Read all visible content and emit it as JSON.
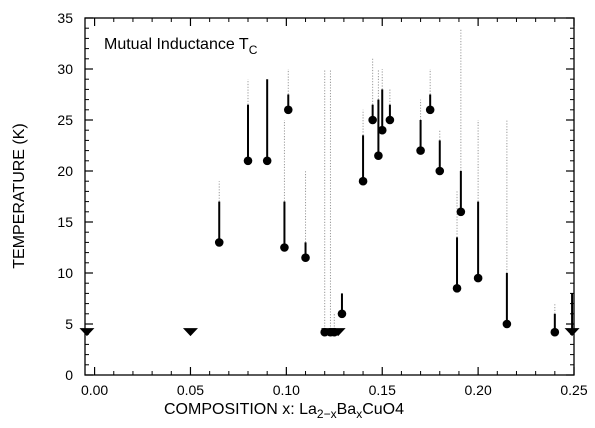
{
  "chart_data": {
    "type": "scatter",
    "title": "",
    "annotation": {
      "text": "Mutual Inductance T",
      "subscript": "C"
    },
    "xlabel": {
      "prefix": "COMPOSITION x:  ",
      "formula": [
        {
          "text": "La",
          "shift": "none"
        },
        {
          "text": "2−x",
          "shift": "sub"
        },
        {
          "text": "Ba",
          "shift": "none"
        },
        {
          "text": "x",
          "shift": "sub"
        },
        {
          "text": "CuO",
          "shift": "none"
        },
        {
          "text": "4",
          "shift": "none"
        }
      ]
    },
    "ylabel": "TEMPERATURE (K)",
    "xlim": [
      -0.005,
      0.25
    ],
    "ylim": [
      0,
      35
    ],
    "xticks": [
      "0.00",
      "0.05",
      "0.10",
      "0.15",
      "0.20",
      "0.25"
    ],
    "xtick_values": [
      0.0,
      0.05,
      0.1,
      0.15,
      0.2,
      0.25
    ],
    "yticks": [
      "0",
      "5",
      "10",
      "15",
      "20",
      "25",
      "30",
      "35"
    ],
    "ytick_values": [
      0,
      5,
      10,
      15,
      20,
      25,
      30,
      35
    ],
    "grid": false,
    "colors": {
      "marker": "#000000",
      "solid_bar": "#000000",
      "dotted_bar": "#999999"
    },
    "series": [
      {
        "marker": "circle",
        "points": [
          {
            "x": 0.065,
            "y": 13,
            "solid_top": 17,
            "dotted_top": 19
          },
          {
            "x": 0.08,
            "y": 21,
            "solid_top": 26.5,
            "dotted_top": 29
          },
          {
            "x": 0.09,
            "y": 21,
            "solid_top": 29,
            "dotted_top": 29
          },
          {
            "x": 0.099,
            "y": 12.5,
            "solid_top": 17,
            "dotted_top": 25
          },
          {
            "x": 0.101,
            "y": 26,
            "solid_top": 27.5,
            "dotted_top": 30
          },
          {
            "x": 0.11,
            "y": 11.5,
            "solid_top": 13,
            "dotted_top": 20
          },
          {
            "x": 0.12,
            "y": 4.2,
            "solid_top": 4.2,
            "dotted_top": 30
          },
          {
            "x": 0.123,
            "y": 4.2,
            "solid_top": 4.2,
            "dotted_top": 30
          },
          {
            "x": 0.125,
            "y": 4.2,
            "solid_top": 4.2,
            "dotted_top": 6
          },
          {
            "x": 0.129,
            "y": 6,
            "solid_top": 8,
            "dotted_top": 8
          },
          {
            "x": 0.14,
            "y": 19,
            "solid_top": 23.5,
            "dotted_top": 26
          },
          {
            "x": 0.145,
            "y": 25,
            "solid_top": 26.5,
            "dotted_top": 31
          },
          {
            "x": 0.148,
            "y": 21.5,
            "solid_top": 27,
            "dotted_top": 30
          },
          {
            "x": 0.15,
            "y": 24,
            "solid_top": 28,
            "dotted_top": 30
          },
          {
            "x": 0.154,
            "y": 25,
            "solid_top": 26.5,
            "dotted_top": 28
          },
          {
            "x": 0.17,
            "y": 22,
            "solid_top": 25,
            "dotted_top": 27
          },
          {
            "x": 0.175,
            "y": 26,
            "solid_top": 27.5,
            "dotted_top": 30
          },
          {
            "x": 0.18,
            "y": 20,
            "solid_top": 23,
            "dotted_top": 24
          },
          {
            "x": 0.189,
            "y": 8.5,
            "solid_top": 13.5,
            "dotted_top": 18
          },
          {
            "x": 0.191,
            "y": 16,
            "solid_top": 20,
            "dotted_top": 34
          },
          {
            "x": 0.2,
            "y": 9.5,
            "solid_top": 17,
            "dotted_top": 25
          },
          {
            "x": 0.215,
            "y": 5,
            "solid_top": 10,
            "dotted_top": 25
          },
          {
            "x": 0.24,
            "y": 4.2,
            "solid_top": 6,
            "dotted_top": 7
          }
        ]
      },
      {
        "marker": "triangle-down",
        "points": [
          {
            "x": -0.004,
            "y": 4.2,
            "solid_top": 4.2,
            "dotted_top": 4.2
          },
          {
            "x": 0.05,
            "y": 4.2,
            "solid_top": 4.2,
            "dotted_top": 4.2
          },
          {
            "x": 0.122,
            "y": 4.2,
            "solid_top": 4.2,
            "dotted_top": 4.2
          },
          {
            "x": 0.127,
            "y": 4.2,
            "solid_top": 4.2,
            "dotted_top": 4.2
          },
          {
            "x": 0.249,
            "y": 4.2,
            "solid_top": 8,
            "dotted_top": 8
          }
        ]
      }
    ]
  }
}
